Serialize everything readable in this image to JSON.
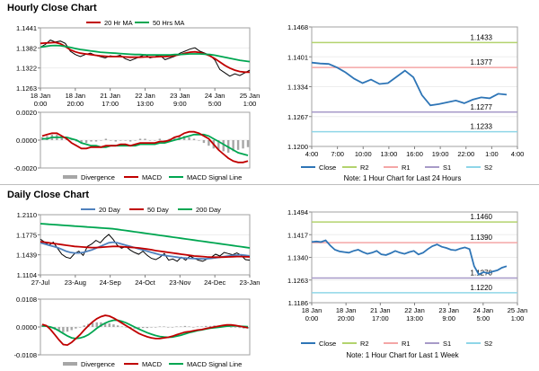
{
  "sections": {
    "hourly_title": "Hourly Close Chart",
    "daily_title": "Daily Close Chart"
  },
  "colors": {
    "ma_red": "#c00000",
    "ma_green": "#00a651",
    "ma_blue": "#4f81bd",
    "price": "#000000",
    "divergence": "#a6a6a6",
    "close_blue": "#2e75b6",
    "r2": "#b3d36e",
    "r1": "#f4a6a6",
    "s1": "#a79ac8",
    "s2": "#8fd6e8"
  },
  "chart_data": [
    {
      "id": "hourly_price",
      "type": "line",
      "title": "Hourly Close Chart",
      "legend": [
        "20 Hr MA",
        "50 Hrs MA"
      ],
      "y_ticks": [
        "1.1441",
        "1.1382",
        "1.1322",
        "1.1263"
      ],
      "ylim": [
        1.1263,
        1.1441
      ],
      "x_ticks": [
        [
          "18 Jan",
          "0:00"
        ],
        [
          "18 Jan",
          "20:00"
        ],
        [
          "21 Jan",
          "17:00"
        ],
        [
          "22 Jan",
          "13:00"
        ],
        [
          "23 Jan",
          "9:00"
        ],
        [
          "24 Jan",
          "5:00"
        ],
        [
          "25 Jan",
          "1:00"
        ]
      ],
      "series": [
        {
          "name": "Close",
          "values": [
            1.1384,
            1.1392,
            1.1405,
            1.1399,
            1.1402,
            1.1395,
            1.1372,
            1.1362,
            1.1356,
            1.1362,
            1.1366,
            1.136,
            1.1356,
            1.1352,
            1.1358,
            1.1356,
            1.136,
            1.135,
            1.1344,
            1.135,
            1.1356,
            1.1362,
            1.1352,
            1.1356,
            1.136,
            1.1347,
            1.1352,
            1.1357,
            1.1366,
            1.1372,
            1.1378,
            1.1382,
            1.1372,
            1.1366,
            1.136,
            1.1346,
            1.1318,
            1.1308,
            1.1298,
            1.1305,
            1.13,
            1.1308,
            1.1316
          ]
        },
        {
          "name": "20 Hr MA",
          "values": [
            1.1395,
            1.1396,
            1.1397,
            1.1398,
            1.1394,
            1.1386,
            1.1376,
            1.137,
            1.1366,
            1.1364,
            1.1362,
            1.136,
            1.1358,
            1.1357,
            1.1356,
            1.1356,
            1.1356,
            1.1355,
            1.1354,
            1.1354,
            1.1354,
            1.1355,
            1.1355,
            1.1355,
            1.1356,
            1.1356,
            1.1357,
            1.1359,
            1.1362,
            1.1366,
            1.1369,
            1.137,
            1.1368,
            1.1364,
            1.1358,
            1.135,
            1.134,
            1.133,
            1.1322,
            1.1316,
            1.1312,
            1.131,
            1.131
          ]
        },
        {
          "name": "50 Hrs MA",
          "values": [
            1.1384,
            1.1386,
            1.1388,
            1.1389,
            1.1388,
            1.1386,
            1.1383,
            1.138,
            1.1377,
            1.1375,
            1.1373,
            1.1371,
            1.1369,
            1.1368,
            1.1367,
            1.1366,
            1.1365,
            1.1364,
            1.1363,
            1.1362,
            1.1362,
            1.1361,
            1.1361,
            1.1361,
            1.1361,
            1.1361,
            1.1361,
            1.1362,
            1.1362,
            1.1363,
            1.1364,
            1.1364,
            1.1364,
            1.1363,
            1.1362,
            1.136,
            1.1357,
            1.1354,
            1.1351,
            1.1348,
            1.1345,
            1.1343,
            1.1341
          ]
        }
      ]
    },
    {
      "id": "hourly_macd",
      "type": "bar",
      "legend": [
        "Divergence",
        "MACD",
        "MACD Signal Line"
      ],
      "y_ticks": [
        "0.0020",
        "0.0000",
        "-0.0020"
      ],
      "ylim": [
        -0.002,
        0.002
      ],
      "series": [
        {
          "name": "Divergence",
          "values": [
            0.0002,
            0.0003,
            0.0004,
            0.0004,
            0.0003,
            0.0002,
            0.0001,
            -0.0001,
            -0.0002,
            -0.0002,
            -0.0001,
            -0.0001,
            0.0,
            0.0001,
            0.0,
            -0.0001,
            0.0,
            0.0,
            -0.0001,
            0.0,
            0.0001,
            0.0001,
            0.0,
            0.0,
            0.0001,
            0.0,
            0.0001,
            0.0002,
            0.0003,
            0.0003,
            0.0002,
            0.0001,
            0.0,
            -0.0002,
            -0.0004,
            -0.0006,
            -0.0007,
            -0.0008,
            -0.0009,
            -0.0008,
            -0.0007,
            -0.0006,
            -0.0005
          ]
        },
        {
          "name": "MACD",
          "values": [
            0.0003,
            0.0004,
            0.0005,
            0.0005,
            0.0003,
            0.0001,
            -0.0002,
            -0.0004,
            -0.0006,
            -0.0006,
            -0.0005,
            -0.0005,
            -0.0005,
            -0.0004,
            -0.0004,
            -0.0004,
            -0.0003,
            -0.0003,
            -0.0004,
            -0.0003,
            -0.0002,
            -0.0002,
            -0.0002,
            -0.0002,
            -0.0001,
            -0.0001,
            0.0,
            0.0002,
            0.0003,
            0.0005,
            0.0006,
            0.0006,
            0.0005,
            0.0003,
            0.0001,
            -0.0003,
            -0.0007,
            -0.001,
            -0.0013,
            -0.0015,
            -0.0016,
            -0.0016,
            -0.0015
          ]
        },
        {
          "name": "MACD Signal Line",
          "values": [
            0.0001,
            0.0001,
            0.0002,
            0.0002,
            0.0002,
            0.0002,
            0.0001,
            0.0,
            -0.0002,
            -0.0003,
            -0.0004,
            -0.0004,
            -0.0005,
            -0.0005,
            -0.0004,
            -0.0004,
            -0.0004,
            -0.0004,
            -0.0004,
            -0.0004,
            -0.0003,
            -0.0003,
            -0.0003,
            -0.0003,
            -0.0002,
            -0.0002,
            -0.0001,
            0.0,
            0.0001,
            0.0002,
            0.0003,
            0.0004,
            0.0004,
            0.0004,
            0.0003,
            0.0001,
            -0.0001,
            -0.0003,
            -0.0005,
            -0.0007,
            -0.0009,
            -0.001,
            -0.0011
          ]
        }
      ]
    },
    {
      "id": "hourly_levels",
      "type": "line",
      "note": "Note: 1 Hour Chart for Last 24 Hours",
      "legend": [
        "Close",
        "R2",
        "R1",
        "S1",
        "S2"
      ],
      "y_ticks": [
        "1.1468",
        "1.1401",
        "1.1334",
        "1.1267",
        "1.1200"
      ],
      "ylim": [
        1.12,
        1.1468
      ],
      "x_ticks": [
        "4:00",
        "7:00",
        "10:00",
        "13:00",
        "16:00",
        "19:00",
        "22:00",
        "1:00",
        "4:00"
      ],
      "levels": [
        {
          "name": "R2",
          "value": 1.1433,
          "label": "1.1433"
        },
        {
          "name": "R1",
          "value": 1.1377,
          "label": "1.1377"
        },
        {
          "name": "S1",
          "value": 1.1277,
          "label": "1.1277"
        },
        {
          "name": "S2",
          "value": 1.1233,
          "label": "1.1233"
        }
      ],
      "series": [
        {
          "name": "Close",
          "values": [
            1.1388,
            1.1386,
            1.1385,
            1.1377,
            1.1366,
            1.1352,
            1.1342,
            1.135,
            1.134,
            1.1342,
            1.1356,
            1.137,
            1.1355,
            1.1315,
            1.1292,
            1.1295,
            1.1299,
            1.1303,
            1.1297,
            1.1305,
            1.131,
            1.1308,
            1.1318,
            1.1316
          ]
        }
      ]
    },
    {
      "id": "daily_price",
      "type": "line",
      "title": "Daily Close Chart",
      "legend": [
        "20 Day",
        "50 Day",
        "200 Day"
      ],
      "y_ticks": [
        "1.2110",
        "1.1775",
        "1.1439",
        "1.1104"
      ],
      "ylim": [
        1.1104,
        1.211
      ],
      "x_ticks": [
        "27-Jul",
        "23-Aug",
        "24-Sep",
        "24-Oct",
        "23-Nov",
        "24-Dec",
        "23-Jan"
      ],
      "series": [
        {
          "name": "Close",
          "values": [
            1.17,
            1.165,
            1.16,
            1.165,
            1.155,
            1.145,
            1.14,
            1.138,
            1.146,
            1.15,
            1.143,
            1.158,
            1.162,
            1.168,
            1.164,
            1.172,
            1.178,
            1.17,
            1.16,
            1.155,
            1.158,
            1.152,
            1.148,
            1.145,
            1.15,
            1.143,
            1.138,
            1.136,
            1.14,
            1.146,
            1.135,
            1.137,
            1.133,
            1.14,
            1.135,
            1.142,
            1.138,
            1.135,
            1.133,
            1.137,
            1.14,
            1.145,
            1.142,
            1.148,
            1.146,
            1.144,
            1.147,
            1.143,
            1.136,
            1.135
          ]
        },
        {
          "name": "20 Day",
          "values": [
            1.164,
            1.162,
            1.16,
            1.158,
            1.156,
            1.153,
            1.15,
            1.148,
            1.147,
            1.147,
            1.148,
            1.15,
            1.152,
            1.155,
            1.158,
            1.161,
            1.164,
            1.165,
            1.164,
            1.162,
            1.16,
            1.158,
            1.156,
            1.154,
            1.152,
            1.15,
            1.148,
            1.146,
            1.144,
            1.143,
            1.142,
            1.141,
            1.14,
            1.139,
            1.1385,
            1.138,
            1.1378,
            1.1375,
            1.1372,
            1.1375,
            1.138,
            1.139,
            1.14,
            1.141,
            1.142,
            1.143,
            1.1435,
            1.144,
            1.143,
            1.142
          ]
        },
        {
          "name": "50 Day",
          "values": [
            1.166,
            1.165,
            1.164,
            1.163,
            1.162,
            1.161,
            1.16,
            1.159,
            1.158,
            1.1575,
            1.157,
            1.1565,
            1.156,
            1.156,
            1.1565,
            1.157,
            1.1575,
            1.158,
            1.158,
            1.1575,
            1.157,
            1.1565,
            1.156,
            1.1555,
            1.1545,
            1.1535,
            1.1525,
            1.151,
            1.15,
            1.149,
            1.148,
            1.147,
            1.146,
            1.145,
            1.144,
            1.143,
            1.142,
            1.1415,
            1.141,
            1.1405,
            1.14,
            1.14,
            1.14,
            1.1402,
            1.1405,
            1.1408,
            1.141,
            1.141,
            1.1408,
            1.1405
          ]
        },
        {
          "name": "200 Day",
          "values": [
            1.196,
            1.1955,
            1.195,
            1.1945,
            1.194,
            1.1935,
            1.193,
            1.1925,
            1.192,
            1.1915,
            1.191,
            1.1905,
            1.19,
            1.1895,
            1.189,
            1.1885,
            1.188,
            1.1875,
            1.1865,
            1.1855,
            1.1845,
            1.1835,
            1.1825,
            1.1815,
            1.1805,
            1.1795,
            1.1785,
            1.1775,
            1.1765,
            1.1755,
            1.1745,
            1.1735,
            1.1725,
            1.1715,
            1.1705,
            1.1695,
            1.1685,
            1.1675,
            1.1665,
            1.1655,
            1.1645,
            1.1635,
            1.1625,
            1.1615,
            1.1605,
            1.1595,
            1.1585,
            1.1575,
            1.1565,
            1.1555
          ]
        }
      ]
    },
    {
      "id": "daily_macd",
      "type": "bar",
      "legend": [
        "Divergence",
        "MACD",
        "MACD Signal Line"
      ],
      "y_ticks": [
        "0.0108",
        "0.0000",
        "-0.0108"
      ],
      "ylim": [
        -0.0108,
        0.0108
      ],
      "series": [
        {
          "name": "Divergence",
          "values": [
            0.0008,
            0.0004,
            -0.0004,
            -0.001,
            -0.0016,
            -0.002,
            -0.0018,
            -0.0012,
            -0.0006,
            0.0,
            0.0006,
            0.0012,
            0.0016,
            0.0018,
            0.0018,
            0.0016,
            0.0014,
            0.001,
            0.0006,
            0.0002,
            -0.0002,
            -0.0004,
            -0.0006,
            -0.0006,
            -0.0004,
            -0.0004,
            -0.0002,
            0.0,
            0.0002,
            0.0002,
            0.0,
            0.0,
            0.0002,
            0.0002,
            0.0004,
            0.0002,
            0.0,
            0.0002,
            0.0002,
            0.0004,
            0.0004,
            0.0006,
            0.0004,
            0.0004,
            0.0002,
            0.0,
            -0.0002,
            -0.0004,
            -0.0006,
            -0.0006
          ]
        },
        {
          "name": "MACD",
          "values": [
            0.001,
            0.0005,
            -0.001,
            -0.003,
            -0.005,
            -0.0068,
            -0.007,
            -0.006,
            -0.0045,
            -0.003,
            -0.0012,
            0.0005,
            0.002,
            0.0032,
            0.004,
            0.0045,
            0.0042,
            0.0035,
            0.0025,
            0.0015,
            0.0005,
            -0.0005,
            -0.0015,
            -0.0025,
            -0.0032,
            -0.0038,
            -0.0042,
            -0.0045,
            -0.0045,
            -0.0042,
            -0.004,
            -0.0036,
            -0.003,
            -0.0025,
            -0.002,
            -0.0018,
            -0.0015,
            -0.0012,
            -0.001,
            -0.0006,
            -0.0003,
            0.0,
            0.0003,
            0.0006,
            0.0008,
            0.0008,
            0.0006,
            0.0003,
            0.0,
            -0.0003
          ]
        },
        {
          "name": "MACD Signal Line",
          "values": [
            0.0004,
            0.0003,
            0.0,
            -0.0006,
            -0.0015,
            -0.0025,
            -0.0035,
            -0.0042,
            -0.0045,
            -0.0043,
            -0.0038,
            -0.003,
            -0.0018,
            -0.0005,
            0.0006,
            0.0015,
            0.0022,
            0.0026,
            0.0026,
            0.0022,
            0.0016,
            0.0008,
            0.0,
            -0.0008,
            -0.0015,
            -0.0022,
            -0.0028,
            -0.0033,
            -0.0037,
            -0.0039,
            -0.004,
            -0.0039,
            -0.0036,
            -0.0032,
            -0.0027,
            -0.0022,
            -0.0018,
            -0.0014,
            -0.0011,
            -0.0008,
            -0.0005,
            -0.0003,
            -0.0001,
            0.0001,
            0.0003,
            0.0004,
            0.0004,
            0.0003,
            0.0002,
            0.0001
          ]
        }
      ]
    },
    {
      "id": "daily_levels",
      "type": "line",
      "note": "Note: 1 Hour Chart for Last 1 Week",
      "legend": [
        "Close",
        "R2",
        "R1",
        "S1",
        "S2"
      ],
      "y_ticks": [
        "1.1494",
        "1.1417",
        "1.1340",
        "1.1263",
        "1.1186"
      ],
      "ylim": [
        1.1186,
        1.1494
      ],
      "x_ticks": [
        [
          "18 Jan",
          "0:00"
        ],
        [
          "18 Jan",
          "20:00"
        ],
        [
          "21 Jan",
          "17:00"
        ],
        [
          "22 Jan",
          "13:00"
        ],
        [
          "23 Jan",
          "9:00"
        ],
        [
          "24 Jan",
          "5:00"
        ],
        [
          "25 Jan",
          "1:00"
        ]
      ],
      "levels": [
        {
          "name": "R2",
          "value": 1.146,
          "label": "1.1460"
        },
        {
          "name": "R1",
          "value": 1.139,
          "label": "1.1390"
        },
        {
          "name": "S1",
          "value": 1.127,
          "label": "1.1270"
        },
        {
          "name": "S2",
          "value": 1.122,
          "label": "1.1220"
        }
      ],
      "series": [
        {
          "name": "Close",
          "values": [
            1.1392,
            1.1394,
            1.1392,
            1.1398,
            1.138,
            1.1366,
            1.136,
            1.1358,
            1.1356,
            1.1362,
            1.1366,
            1.1358,
            1.1352,
            1.1356,
            1.1362,
            1.135,
            1.1348,
            1.1354,
            1.1362,
            1.1356,
            1.1352,
            1.1358,
            1.1362,
            1.135,
            1.1356,
            1.1368,
            1.1378,
            1.1384,
            1.1376,
            1.1372,
            1.1366,
            1.1364,
            1.137,
            1.1374,
            1.1368,
            1.131,
            1.1282,
            1.129,
            1.1286,
            1.1292,
            1.1296,
            1.1305,
            1.131
          ]
        }
      ]
    }
  ]
}
